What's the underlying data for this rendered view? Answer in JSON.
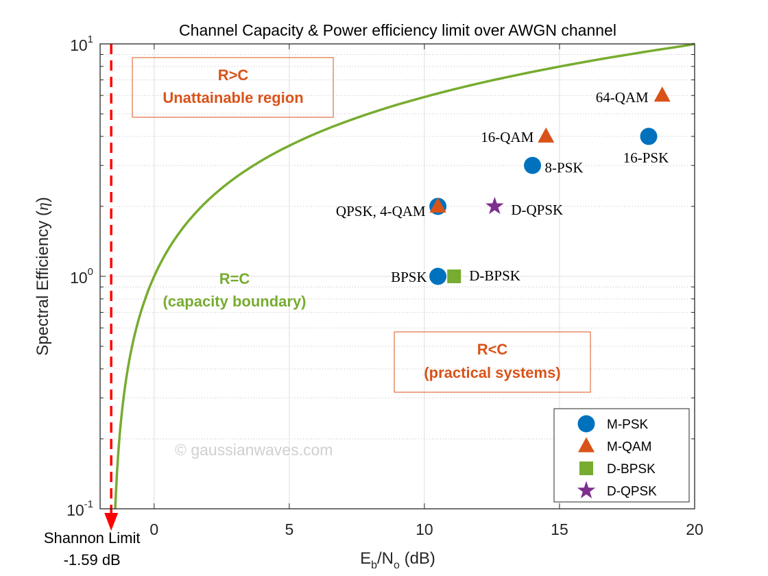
{
  "chart_data": {
    "type": "scatter",
    "title": "Channel Capacity & Power efficiency limit over AWGN channel",
    "xlabel": "E_b/N_o (dB)",
    "xlabel_parts": {
      "e": "E",
      "b": "b",
      "slash": "/N",
      "o": "o",
      "unit": " (dB)"
    },
    "ylabel": "Spectral Efficiency (η)",
    "ylabel_parts": {
      "text": "Spectral Efficiency (",
      "sym": "η",
      "close": ")"
    },
    "xlim": [
      -2,
      20
    ],
    "ylim": [
      0.1,
      10
    ],
    "yscale": "log",
    "xticks": [
      "0",
      "5",
      "10",
      "15",
      "20"
    ],
    "xtick_values": [
      0,
      5,
      10,
      15,
      20
    ],
    "yticks": [
      {
        "base": "10",
        "exp": "-1",
        "value": 0.1
      },
      {
        "base": "10",
        "exp": "0",
        "value": 1
      },
      {
        "base": "10",
        "exp": "1",
        "value": 10
      }
    ],
    "grid": true,
    "capacity_curve": {
      "formula": "Eb/N0 = (2^η - 1)/η",
      "color": "#77AC30"
    },
    "shannon_limit": {
      "x": -1.59,
      "label_line1": "Shannon Limit",
      "label_line2": "-1.59 dB",
      "color": "#FF0000"
    },
    "points": [
      {
        "label": "BPSK",
        "x": 10.5,
        "y": 1,
        "series": "M-PSK"
      },
      {
        "label": "QPSK, 4-QAM",
        "x": 10.5,
        "y": 2,
        "series": "M-PSK"
      },
      {
        "label": "8-PSK",
        "x": 14.0,
        "y": 3,
        "series": "M-PSK"
      },
      {
        "label": "16-PSK",
        "x": 18.3,
        "y": 4,
        "series": "M-PSK"
      },
      {
        "label": "",
        "x": 10.5,
        "y": 2,
        "series": "M-QAM"
      },
      {
        "label": "16-QAM",
        "x": 14.5,
        "y": 4,
        "series": "M-QAM"
      },
      {
        "label": "64-QAM",
        "x": 18.8,
        "y": 6,
        "series": "M-QAM"
      },
      {
        "label": "D-BPSK",
        "x": 11.1,
        "y": 1,
        "series": "D-BPSK"
      },
      {
        "label": "D-QPSK",
        "x": 12.6,
        "y": 2,
        "series": "D-QPSK"
      }
    ],
    "legend": {
      "placement": "bottom-right",
      "entries": [
        {
          "name": "M-PSK",
          "marker": "circle",
          "color": "#0072BD"
        },
        {
          "name": "M-QAM",
          "marker": "triangle",
          "color": "#D95319"
        },
        {
          "name": "D-BPSK",
          "marker": "square",
          "color": "#77AC30"
        },
        {
          "name": "D-QPSK",
          "marker": "star",
          "color": "#7E2F8E"
        }
      ]
    },
    "annotations": {
      "unattainable": {
        "line1": "R>C",
        "line2": "Unattainable region",
        "color": "#D95319"
      },
      "boundary": {
        "line1": "R=C",
        "line2": "(capacity boundary)",
        "color": "#77AC30"
      },
      "practical": {
        "line1": "R<C",
        "line2": "(practical systems)",
        "color": "#D95319"
      }
    },
    "watermark": "© gaussianwaves.com"
  }
}
